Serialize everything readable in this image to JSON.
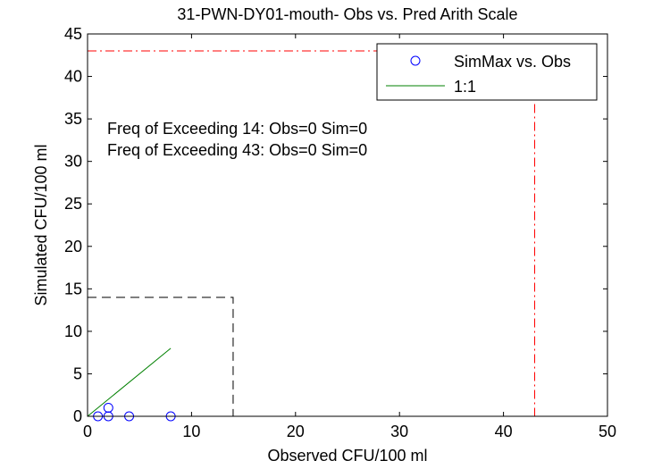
{
  "chart_data": {
    "type": "scatter",
    "title": "31-PWN-DY01-mouth- Obs vs. Pred Arith Scale",
    "xlabel": "Observed CFU/100 ml",
    "ylabel": "Simulated CFU/100 ml",
    "xlim": [
      0,
      50
    ],
    "ylim": [
      0,
      45
    ],
    "xticks": [
      0,
      10,
      20,
      30,
      40,
      50
    ],
    "yticks": [
      0,
      5,
      10,
      15,
      20,
      25,
      30,
      35,
      40,
      45
    ],
    "grid": false,
    "legend_position": "top-right",
    "series": [
      {
        "name": "SimMax vs. Obs",
        "kind": "markers",
        "marker": "circle",
        "color": "#0000ff",
        "points": [
          [
            1,
            0
          ],
          [
            2,
            0
          ],
          [
            2,
            1
          ],
          [
            4,
            0
          ],
          [
            8,
            0
          ]
        ]
      },
      {
        "name": "1:1",
        "kind": "line",
        "color": "#008000",
        "points": [
          [
            0,
            0
          ],
          [
            8,
            8
          ]
        ]
      }
    ],
    "reference_lines": [
      {
        "style": "dash",
        "color": "#000000",
        "points": [
          [
            0,
            14
          ],
          [
            14,
            14
          ],
          [
            14,
            0
          ]
        ]
      },
      {
        "style": "dashdot",
        "color": "#ff0000",
        "points": [
          [
            0,
            43
          ],
          [
            43,
            43
          ],
          [
            43,
            0
          ]
        ]
      }
    ],
    "annotations": [
      "Freq of Exceeding 14: Obs=0 Sim=0",
      "Freq of Exceeding 43: Obs=0 Sim=0"
    ]
  }
}
